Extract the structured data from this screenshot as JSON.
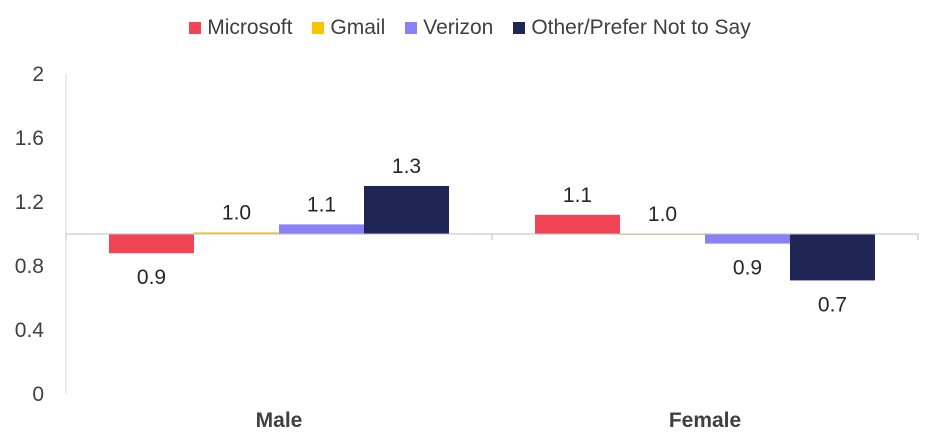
{
  "chart_data": {
    "type": "bar",
    "categories": [
      "Male",
      "Female"
    ],
    "baseline": 1.0,
    "series": [
      {
        "name": "Microsoft",
        "color": "#F14555",
        "values": [
          0.88,
          1.12
        ],
        "labels": [
          "0.9",
          "1.1"
        ]
      },
      {
        "name": "Gmail",
        "color": "#F4C500",
        "values": [
          1.01,
          1.0
        ],
        "labels": [
          "1.0",
          "1.0"
        ]
      },
      {
        "name": "Verizon",
        "color": "#8A80F8",
        "values": [
          1.06,
          0.94
        ],
        "labels": [
          "1.1",
          "0.9"
        ]
      },
      {
        "name": "Other/Prefer Not to Say",
        "color": "#1F2555",
        "values": [
          1.3,
          0.71
        ],
        "labels": [
          "1.3",
          "0.7"
        ]
      }
    ],
    "yticks": [
      "0",
      "0.4",
      "0.8",
      "1.2",
      "1.6",
      "2"
    ],
    "ylim": [
      0,
      2
    ],
    "legend_position": "top",
    "grid": false
  }
}
